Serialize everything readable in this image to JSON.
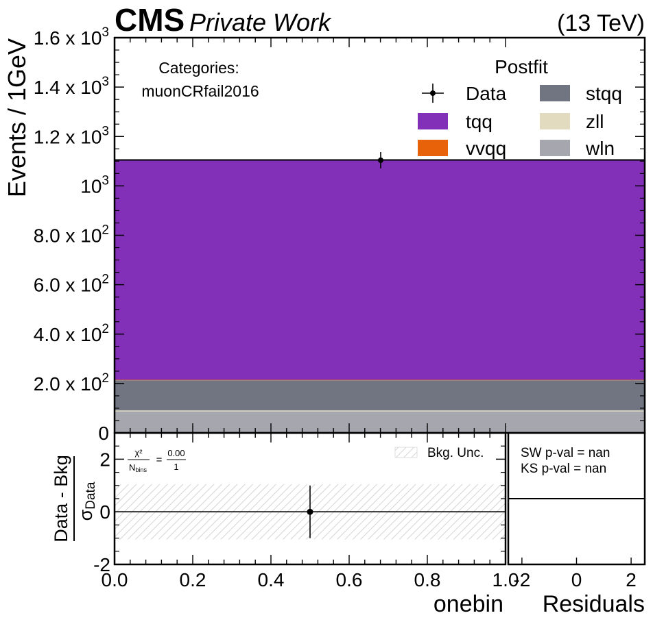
{
  "header": {
    "brand": "CMS",
    "subtitle": "Private Work",
    "energy": "(13 TeV)"
  },
  "annotations": {
    "categories_label": "Categories:",
    "category_name": "muonCRfail2016",
    "chi2_num": "χ²",
    "chi2_den": "N",
    "chi2_den_sub": "bins",
    "chi2_eq": "=",
    "chi2_val_num": "0.00",
    "chi2_val_den": "1",
    "sw_pval": "SW p-val = nan",
    "ks_pval": "KS p-val = nan"
  },
  "colors": {
    "tqq": "#8230b8",
    "vvqq": "#e8620a",
    "stqq": "#717581",
    "zll": "#e2dbc0",
    "wln": "#a6a7ae",
    "data": "#000000",
    "unc_hatch": "#cfcfcf"
  },
  "chart_data": [
    {
      "type": "bar",
      "panel": "main",
      "ylabel": "Events / 1GeV",
      "ylim": [
        0,
        1600
      ],
      "y_ticks": [
        {
          "value": 0,
          "mant": "0",
          "exp": ""
        },
        {
          "value": 200,
          "mant": "2.0 x 10",
          "exp": "2"
        },
        {
          "value": 400,
          "mant": "4.0 x 10",
          "exp": "2"
        },
        {
          "value": 600,
          "mant": "6.0 x 10",
          "exp": "2"
        },
        {
          "value": 800,
          "mant": "8.0 x 10",
          "exp": "2"
        },
        {
          "value": 1000,
          "mant": "10",
          "exp": "3"
        },
        {
          "value": 1200,
          "mant": "1.2 x 10",
          "exp": "3"
        },
        {
          "value": 1400,
          "mant": "1.4 x 10",
          "exp": "3"
        },
        {
          "value": 1600,
          "mant": "1.6 x 10",
          "exp": "3"
        }
      ],
      "stack": [
        {
          "name": "wln",
          "value": 87
        },
        {
          "name": "zll",
          "value": 4
        },
        {
          "name": "stqq",
          "value": 122
        },
        {
          "name": "vvqq",
          "value": 2
        },
        {
          "name": "tqq",
          "value": 890
        }
      ],
      "data_point": {
        "x": 0.5,
        "y": 1104,
        "yerr": 33
      },
      "legend": {
        "title": "Postfit",
        "placement": "top-right",
        "entries": [
          {
            "name": "Data",
            "kind": "data"
          },
          {
            "name": "stqq",
            "kind": "fill"
          },
          {
            "name": "tqq",
            "kind": "fill"
          },
          {
            "name": "zll",
            "kind": "fill"
          },
          {
            "name": "vvqq",
            "kind": "fill"
          },
          {
            "name": "wln",
            "kind": "fill"
          }
        ]
      }
    },
    {
      "type": "scatter",
      "panel": "ratio",
      "xlabel": "onebin",
      "ylabel_num": "Data - Bkg",
      "ylabel_den": "σ",
      "ylabel_den_sub": "Data",
      "xlim": [
        0,
        1
      ],
      "ylim": [
        -2,
        3
      ],
      "x_ticks": [
        "0.0",
        "0.2",
        "0.4",
        "0.6",
        "0.8",
        "1.0"
      ],
      "y_ticks": [
        "-2",
        "0",
        "2"
      ],
      "unc_band": [
        -1.05,
        1.05
      ],
      "unc_label": "Bkg. Unc.",
      "point": {
        "x": 0.5,
        "y": 0,
        "yerr": 1.0
      }
    },
    {
      "type": "line",
      "panel": "residuals",
      "xlabel": "Residuals",
      "x_ticks": [
        "-2",
        "0",
        "2"
      ],
      "xlim": [
        -2.5,
        2.5
      ],
      "ylim": [
        0,
        1
      ],
      "line_y": 0.5
    }
  ]
}
